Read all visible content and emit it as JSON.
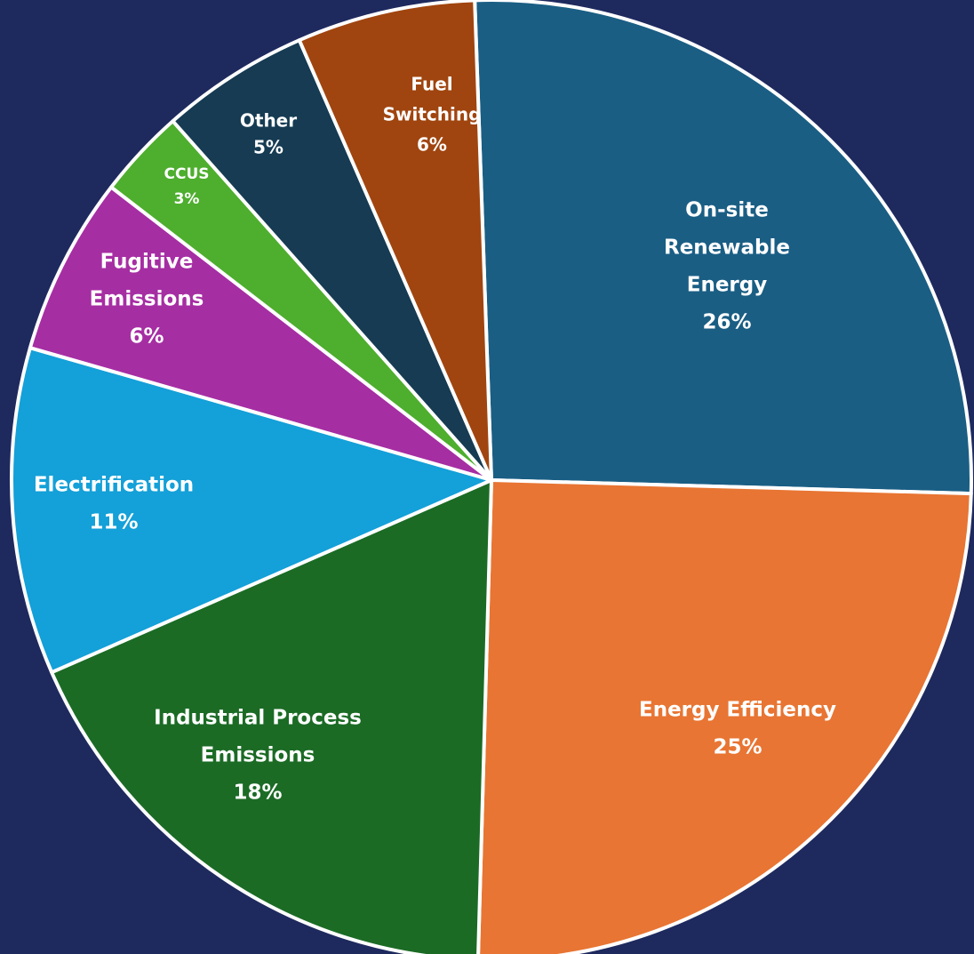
{
  "chart_data": {
    "type": "pie",
    "title": "",
    "colors": {
      "background": "#1e2a5e",
      "slice_border": "#ffffff"
    },
    "slices": [
      {
        "label": [
          "On-site",
          "Renewable",
          "Energy"
        ],
        "percent_label": "26%",
        "value": 26,
        "color": "#1a5e84"
      },
      {
        "label": [
          "Energy Efficiency"
        ],
        "percent_label": "25%",
        "value": 25,
        "color": "#e87533"
      },
      {
        "label": [
          "Industrial Process",
          "Emissions"
        ],
        "percent_label": "18%",
        "value": 18,
        "color": "#1b6b25"
      },
      {
        "label": [
          "Electrification"
        ],
        "percent_label": "11%",
        "value": 11,
        "color": "#14a0d8"
      },
      {
        "label": [
          "Fugitive",
          "Emissions"
        ],
        "percent_label": "6%",
        "value": 6,
        "color": "#a62ea3"
      },
      {
        "label": [
          "CCUS"
        ],
        "percent_label": "3%",
        "value": 3,
        "color": "#4eae2e"
      },
      {
        "label": [
          "Other"
        ],
        "percent_label": "5%",
        "value": 5,
        "color": "#163b53"
      },
      {
        "label": [
          "Fuel",
          "Switching"
        ],
        "percent_label": "6%",
        "value": 6,
        "color": "#a0450f"
      }
    ]
  }
}
